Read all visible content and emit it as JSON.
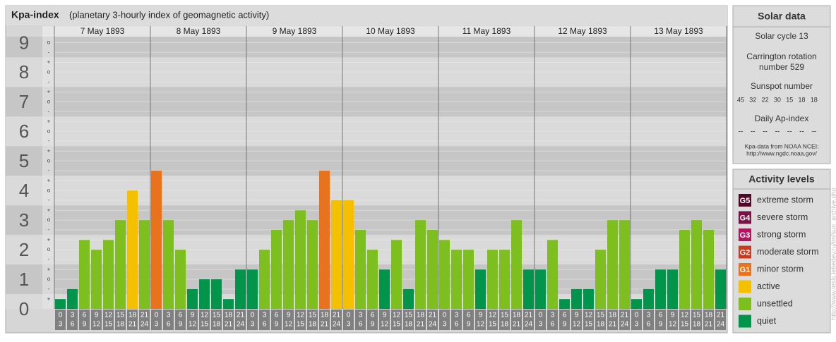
{
  "chart_data": {
    "type": "bar",
    "title": "Kpa-index",
    "subtitle": "(planetary 3-hourly index of geomagnetic activity)",
    "ylim": [
      0,
      9.2
    ],
    "yticks": [
      0,
      1,
      2,
      3,
      4,
      5,
      6,
      7,
      8,
      9
    ],
    "yticks_minor": [
      {
        "value": 0.33,
        "label": "+"
      },
      {
        "value": 0.67,
        "label": "-"
      },
      {
        "value": 1,
        "label": "o"
      },
      {
        "value": 1.33,
        "label": "+"
      },
      {
        "value": 1.67,
        "label": "-"
      },
      {
        "value": 2,
        "label": "o"
      },
      {
        "value": 2.33,
        "label": "+"
      },
      {
        "value": 2.67,
        "label": "-"
      },
      {
        "value": 3,
        "label": "o"
      },
      {
        "value": 3.33,
        "label": "+"
      },
      {
        "value": 3.67,
        "label": "-"
      },
      {
        "value": 4,
        "label": "o"
      },
      {
        "value": 4.33,
        "label": "+"
      },
      {
        "value": 4.67,
        "label": "-"
      },
      {
        "value": 5,
        "label": "o"
      },
      {
        "value": 5.33,
        "label": "+"
      },
      {
        "value": 5.67,
        "label": "-"
      },
      {
        "value": 6,
        "label": "o"
      },
      {
        "value": 6.33,
        "label": "+"
      },
      {
        "value": 6.67,
        "label": "-"
      },
      {
        "value": 7,
        "label": "o"
      },
      {
        "value": 7.33,
        "label": "+"
      },
      {
        "value": 7.67,
        "label": "-"
      },
      {
        "value": 8,
        "label": "o"
      },
      {
        "value": 8.33,
        "label": "+"
      },
      {
        "value": 8.67,
        "label": "-"
      },
      {
        "value": 9,
        "label": "o"
      }
    ],
    "hours": [
      [
        "0",
        "3"
      ],
      [
        "3",
        "6"
      ],
      [
        "6",
        "9"
      ],
      [
        "9",
        "12"
      ],
      [
        "12",
        "15"
      ],
      [
        "15",
        "18"
      ],
      [
        "18",
        "21"
      ],
      [
        "21",
        "24"
      ]
    ],
    "days": [
      {
        "date": "7 May 1893",
        "values": [
          0.33,
          0.67,
          2.33,
          2,
          2.33,
          3,
          4,
          3
        ],
        "colors": [
          "#00954a",
          "#00954a",
          "#7dbf1f",
          "#7dbf1f",
          "#7dbf1f",
          "#7dbf1f",
          "#f5c000",
          "#7dbf1f"
        ]
      },
      {
        "date": "8 May 1893",
        "values": [
          4.67,
          3,
          2,
          0.67,
          1,
          1,
          0.33,
          1.33
        ],
        "colors": [
          "#e8731e",
          "#7dbf1f",
          "#7dbf1f",
          "#00954a",
          "#00954a",
          "#00954a",
          "#00954a",
          "#00954a"
        ]
      },
      {
        "date": "9 May 1893",
        "values": [
          1.33,
          2,
          2.67,
          3,
          3.33,
          3,
          4.67,
          3.67
        ],
        "colors": [
          "#00954a",
          "#7dbf1f",
          "#7dbf1f",
          "#7dbf1f",
          "#7dbf1f",
          "#7dbf1f",
          "#e8731e",
          "#f5c000"
        ]
      },
      {
        "date": "10 May 1893",
        "values": [
          3.67,
          2.67,
          2,
          1.33,
          2.33,
          0.67,
          3,
          2.67
        ],
        "colors": [
          "#f5c000",
          "#7dbf1f",
          "#7dbf1f",
          "#00954a",
          "#7dbf1f",
          "#00954a",
          "#7dbf1f",
          "#7dbf1f"
        ]
      },
      {
        "date": "11 May 1893",
        "values": [
          2.33,
          2,
          2,
          1.33,
          2,
          2,
          3,
          1.33
        ],
        "colors": [
          "#7dbf1f",
          "#7dbf1f",
          "#7dbf1f",
          "#00954a",
          "#7dbf1f",
          "#7dbf1f",
          "#7dbf1f",
          "#00954a"
        ]
      },
      {
        "date": "12 May 1893",
        "values": [
          1.33,
          2.33,
          0.33,
          0.67,
          0.67,
          2,
          3,
          3
        ],
        "colors": [
          "#00954a",
          "#7dbf1f",
          "#00954a",
          "#00954a",
          "#00954a",
          "#7dbf1f",
          "#7dbf1f",
          "#7dbf1f"
        ]
      },
      {
        "date": "13 May 1893",
        "values": [
          0.33,
          0.67,
          1.33,
          1.33,
          2.67,
          3,
          2.67,
          1.33
        ],
        "colors": [
          "#00954a",
          "#00954a",
          "#00954a",
          "#00954a",
          "#7dbf1f",
          "#7dbf1f",
          "#7dbf1f",
          "#00954a"
        ]
      }
    ]
  },
  "solar_data": {
    "title": "Solar data",
    "solar_cycle": "Solar cycle 13",
    "carrington": [
      "Carrington rotation",
      "number 529"
    ],
    "sunspot_title": "Sunspot number",
    "sunspot_numbers": [
      45,
      32,
      22,
      30,
      15,
      18,
      18
    ],
    "ap_title": "Daily Ap-index",
    "ap_values": [
      "--",
      "--",
      "--",
      "--",
      "--",
      "--",
      "--"
    ],
    "source": [
      "Kpa-data from NOAA NCEI:",
      "http://www.ngdc.noaa.gov/"
    ]
  },
  "activity_levels": {
    "title": "Activity levels",
    "items": [
      {
        "code": "G5",
        "name": "extreme storm",
        "color": "#4e0a26"
      },
      {
        "code": "G4",
        "name": "severe storm",
        "color": "#7a1245"
      },
      {
        "code": "G3",
        "name": "strong storm",
        "color": "#b3145f"
      },
      {
        "code": "G2",
        "name": "moderate storm",
        "color": "#cc3a1e"
      },
      {
        "code": "G1",
        "name": "minor storm",
        "color": "#e8731e"
      },
      {
        "code": null,
        "name": "active",
        "color": "#f5c000"
      },
      {
        "code": null,
        "name": "unsettled",
        "color": "#7dbf1f"
      },
      {
        "code": null,
        "name": "quiet",
        "color": "#00954a"
      }
    ]
  },
  "watermark": "http://www.tesis.lebedev.ru/en/sun_archive.php"
}
